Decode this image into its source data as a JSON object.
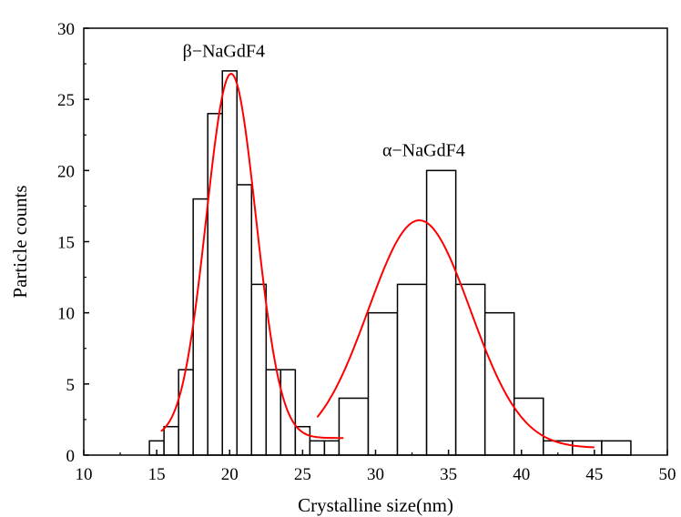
{
  "chart_data": {
    "type": "bar",
    "title": "",
    "xlabel": "Crystalline size(nm)",
    "ylabel": "Particle counts",
    "xlim": [
      10,
      50
    ],
    "ylim": [
      0,
      30
    ],
    "xticks": [
      "10",
      "15",
      "20",
      "25",
      "30",
      "35",
      "40",
      "45",
      "50"
    ],
    "yticks": [
      "0",
      "5",
      "10",
      "15",
      "20",
      "25",
      "30"
    ],
    "grid": false,
    "bins": [
      {
        "x0": 14.5,
        "x1": 15.5,
        "count": 1
      },
      {
        "x0": 15.5,
        "x1": 16.5,
        "count": 2
      },
      {
        "x0": 16.5,
        "x1": 17.5,
        "count": 6
      },
      {
        "x0": 17.5,
        "x1": 18.5,
        "count": 18
      },
      {
        "x0": 18.5,
        "x1": 19.5,
        "count": 24
      },
      {
        "x0": 19.5,
        "x1": 20.5,
        "count": 27
      },
      {
        "x0": 20.5,
        "x1": 21.5,
        "count": 19
      },
      {
        "x0": 21.5,
        "x1": 22.5,
        "count": 12
      },
      {
        "x0": 22.5,
        "x1": 23.5,
        "count": 6
      },
      {
        "x0": 23.5,
        "x1": 24.5,
        "count": 6
      },
      {
        "x0": 24.5,
        "x1": 25.5,
        "count": 2
      },
      {
        "x0": 25.5,
        "x1": 26.5,
        "count": 1
      },
      {
        "x0": 26.5,
        "x1": 27.5,
        "count": 1
      },
      {
        "x0": 27.5,
        "x1": 29.5,
        "count": 4
      },
      {
        "x0": 29.5,
        "x1": 31.5,
        "count": 10
      },
      {
        "x0": 31.5,
        "x1": 33.5,
        "count": 12
      },
      {
        "x0": 33.5,
        "x1": 35.5,
        "count": 20
      },
      {
        "x0": 35.5,
        "x1": 37.5,
        "count": 12
      },
      {
        "x0": 37.5,
        "x1": 39.5,
        "count": 10
      },
      {
        "x0": 39.5,
        "x1": 41.5,
        "count": 4
      },
      {
        "x0": 41.5,
        "x1": 43.5,
        "count": 1
      },
      {
        "x0": 43.5,
        "x1": 45.5,
        "count": 1
      },
      {
        "x0": 45.5,
        "x1": 47.5,
        "count": 1
      }
    ],
    "fit_curves": [
      {
        "center": 20.1,
        "sigma": 1.7,
        "amplitude": 26.8,
        "baseline": 1.2,
        "x_range": [
          15.3,
          27.8
        ],
        "color": "#ff0000"
      },
      {
        "center": 33.0,
        "sigma": 3.5,
        "amplitude": 16.5,
        "baseline": 0.5,
        "x_range": [
          26.0,
          45.0
        ],
        "color": "#ff0000"
      }
    ],
    "annotations": [
      {
        "text": "β−NaGdF4",
        "x": 19.6,
        "y": 28.0
      },
      {
        "text": "α−NaGdF4",
        "x": 33.3,
        "y": 21.0
      }
    ],
    "bar_fill": "#ffffff",
    "bar_stroke": "#000000"
  }
}
